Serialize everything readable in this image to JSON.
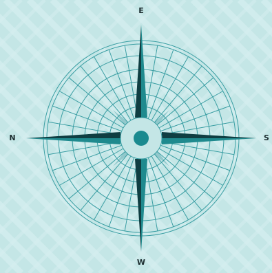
{
  "compass": {
    "labels": {
      "top": "E",
      "bottom": "W",
      "left": "N",
      "right": "S"
    },
    "colors": {
      "background": "#c4e6e6",
      "pattern": "#d6eff0",
      "rose_lines": "#3a9ea3",
      "needle_dark": "#0f3e42",
      "needle_teal": "#1f8a8e",
      "hub": "#1a8a8f"
    }
  }
}
